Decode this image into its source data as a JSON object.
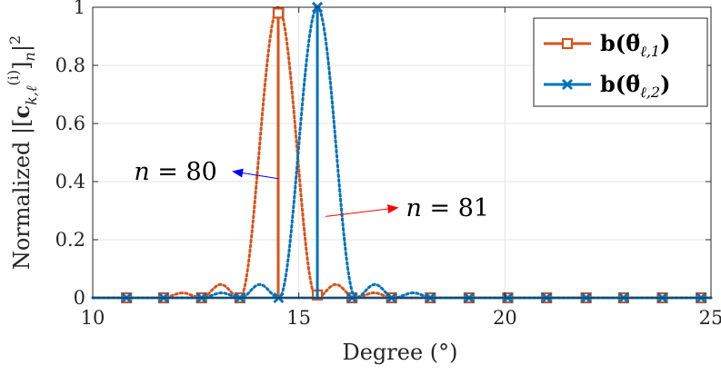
{
  "chart_data": {
    "type": "line",
    "xlabel": "Degree (°)",
    "ylabel": "Normalized |[c_{k,ℓ}^{(i)}]_n|^2",
    "xlim": [
      10,
      25
    ],
    "ylim": [
      0,
      1
    ],
    "xticks": [
      10,
      15,
      20,
      25
    ],
    "yticks": [
      0,
      0.2,
      0.4,
      0.6,
      0.8,
      1
    ],
    "xtick_labels": [
      "10",
      "15",
      "20",
      "25"
    ],
    "ytick_labels": [
      "0",
      "0.2",
      "0.4",
      "0.6",
      "0.8",
      "1"
    ],
    "grid": true,
    "legend_position": "top-right",
    "sample_degrees": [
      10.82,
      11.72,
      12.64,
      13.57,
      14.51,
      15.45,
      16.29,
      17.25,
      18.19,
      19.13,
      20.07,
      21.01,
      21.97,
      22.88,
      23.82,
      24.76
    ],
    "series": [
      {
        "name": "b(θ̃_{ℓ,1})",
        "label_main": "b(θ̃",
        "label_sub": "ℓ,1",
        "label_close": ")",
        "color": "#D95319",
        "marker": "square",
        "beam_peak_degree": 14.5,
        "beam_zeros": [
          0.93,
          1.86,
          2.79
        ],
        "beam_lobe_heights": [
          0.046,
          0.017,
          0.009
        ],
        "stem": {
          "x": 14.5,
          "y": 0.98
        },
        "markers_y": [
          0,
          0,
          0,
          0,
          0.98,
          0.01,
          0,
          0,
          0,
          0,
          0,
          0,
          0,
          0,
          0,
          0
        ]
      },
      {
        "name": "b(θ̃_{ℓ,2})",
        "label_main": "b(θ̃",
        "label_sub": "ℓ,2",
        "label_close": ")",
        "color": "#0072BD",
        "marker": "x",
        "beam_peak_degree": 15.45,
        "beam_zeros": [
          0.93,
          1.86,
          2.79
        ],
        "beam_lobe_heights": [
          0.046,
          0.017,
          0.009
        ],
        "stem": {
          "x": 15.45,
          "y": 1.0
        },
        "markers_y": [
          0,
          0,
          0,
          0,
          0,
          1.0,
          0,
          0,
          0,
          0,
          0,
          0,
          0,
          0,
          0,
          0
        ]
      }
    ],
    "annotations": [
      {
        "text_var": "n",
        "text_rest": " = 80",
        "x": 11.0,
        "y": 0.435,
        "arrow_from": [
          14.5,
          0.41
        ],
        "arrow_to": [
          13.4,
          0.435
        ],
        "color": "#0000FF"
      },
      {
        "text_var": "n",
        "text_rest": " = 81",
        "x": 17.6,
        "y": 0.31,
        "arrow_from": [
          15.65,
          0.28
        ],
        "arrow_to": [
          17.4,
          0.31
        ],
        "color": "#FF0000"
      }
    ]
  }
}
